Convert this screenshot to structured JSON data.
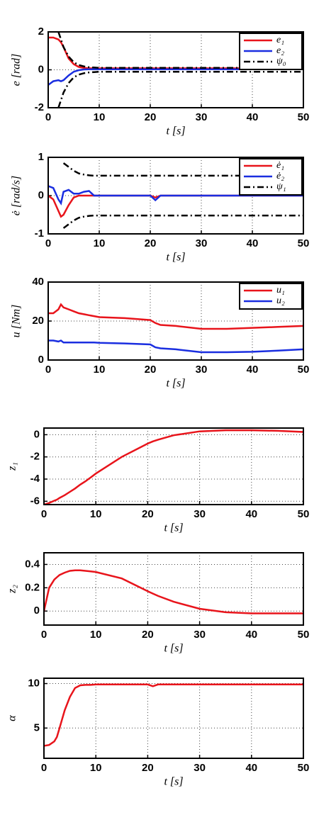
{
  "chart_data": [
    {
      "type": "line",
      "ylabel": "e [rad]",
      "xlabel": "t [s]",
      "x": [
        0,
        1,
        2,
        2.5,
        3,
        4,
        5,
        6,
        7,
        8,
        9,
        10,
        15,
        20,
        21,
        22,
        25,
        30,
        35,
        40,
        45,
        50
      ],
      "series": [
        {
          "name": "e₁",
          "color": "#e8141b",
          "linestyle": "solid",
          "values": [
            1.7,
            1.7,
            1.6,
            1.45,
            1.2,
            0.6,
            0.3,
            0.15,
            0.1,
            0.08,
            0.08,
            0.08,
            0.08,
            0.08,
            0.08,
            0.08,
            0.08,
            0.08,
            0.08,
            0.08,
            0.08,
            0.08
          ]
        },
        {
          "name": "e₂",
          "color": "#1a2ee0",
          "linestyle": "solid",
          "values": [
            -0.8,
            -0.6,
            -0.55,
            -0.6,
            -0.55,
            -0.3,
            -0.1,
            -0.02,
            0.02,
            0.03,
            0.03,
            0.03,
            0.03,
            0.03,
            0.03,
            0.03,
            0.03,
            0.03,
            0.03,
            0.03,
            0.03,
            0.03
          ]
        },
        {
          "name": "ψ₀",
          "color": "#000000",
          "linestyle": "dashdot",
          "values": [
            null,
            null,
            2,
            1.6,
            1.2,
            0.7,
            0.4,
            0.25,
            0.18,
            0.14,
            0.12,
            0.1,
            0.1,
            0.1,
            0.1,
            0.1,
            0.1,
            0.1,
            0.1,
            0.1,
            0.1,
            0.1
          ],
          "lower": [
            null,
            null,
            -2,
            -1.6,
            -1.2,
            -0.7,
            -0.4,
            -0.25,
            -0.18,
            -0.14,
            -0.12,
            -0.1,
            -0.1,
            -0.1,
            -0.1,
            -0.1,
            -0.1,
            -0.1,
            -0.1,
            -0.1,
            -0.1,
            -0.1
          ]
        }
      ],
      "xlim": [
        0,
        50
      ],
      "xticks": [
        0,
        10,
        20,
        30,
        40,
        50
      ],
      "ylim": [
        -2,
        2
      ],
      "yticks": [
        -2,
        0,
        2
      ],
      "grid": true,
      "legend": "upper right"
    },
    {
      "type": "line",
      "ylabel": "ė [rad/s]",
      "xlabel": "t [s]",
      "x": [
        0,
        1,
        2,
        2.5,
        3,
        4,
        5,
        6,
        7,
        8,
        9,
        10,
        15,
        20,
        21,
        22,
        25,
        30,
        35,
        40,
        45,
        50
      ],
      "series": [
        {
          "name": "ė₁",
          "color": "#e8141b",
          "linestyle": "solid",
          "values": [
            0,
            -0.1,
            -0.4,
            -0.55,
            -0.5,
            -0.25,
            -0.05,
            0,
            0,
            0,
            0,
            0,
            0,
            0,
            -0.05,
            0,
            0,
            0,
            0,
            0,
            0,
            0
          ]
        },
        {
          "name": "ė₂",
          "color": "#1a2ee0",
          "linestyle": "solid",
          "values": [
            0.25,
            0.2,
            -0.1,
            -0.2,
            0.1,
            0.15,
            0.05,
            0.05,
            0.1,
            0.12,
            0,
            0,
            0,
            0,
            -0.12,
            0,
            0,
            0,
            0,
            0,
            0,
            0
          ]
        },
        {
          "name": "ψ₁",
          "color": "#000000",
          "linestyle": "dashdot",
          "values": [
            null,
            null,
            null,
            null,
            0.85,
            0.75,
            0.65,
            0.58,
            0.55,
            0.53,
            0.52,
            0.52,
            0.52,
            0.52,
            0.52,
            0.52,
            0.52,
            0.52,
            0.52,
            0.52,
            0.52,
            0.52
          ],
          "lower": [
            null,
            null,
            null,
            null,
            -0.85,
            -0.75,
            -0.65,
            -0.58,
            -0.55,
            -0.53,
            -0.52,
            -0.52,
            -0.52,
            -0.52,
            -0.52,
            -0.52,
            -0.52,
            -0.52,
            -0.52,
            -0.52,
            -0.52,
            -0.52
          ]
        }
      ],
      "xlim": [
        0,
        50
      ],
      "xticks": [
        0,
        10,
        20,
        30,
        40,
        50
      ],
      "ylim": [
        -1,
        1
      ],
      "yticks": [
        -1,
        0,
        1
      ],
      "grid": true,
      "legend": "upper right"
    },
    {
      "type": "line",
      "ylabel": "u [Nm]",
      "xlabel": "t [s]",
      "x": [
        0,
        1,
        2,
        2.5,
        3,
        4,
        5,
        6,
        7,
        8,
        9,
        10,
        15,
        20,
        21,
        22,
        25,
        30,
        35,
        40,
        45,
        50
      ],
      "series": [
        {
          "name": "u₁",
          "color": "#e8141b",
          "linestyle": "solid",
          "values": [
            24,
            24,
            26,
            28.5,
            27,
            26,
            25,
            24,
            23.5,
            23,
            22.5,
            22,
            21.5,
            20.5,
            19,
            18,
            17.5,
            16,
            16,
            16.5,
            17,
            17.5
          ]
        },
        {
          "name": "u₂",
          "color": "#1a2ee0",
          "linestyle": "solid",
          "values": [
            10,
            10,
            9.5,
            10,
            9,
            9,
            9,
            9,
            9,
            9,
            9,
            8.8,
            8.5,
            8,
            6.5,
            6,
            5.5,
            4,
            4,
            4.2,
            4.8,
            5.5
          ]
        }
      ],
      "xlim": [
        0,
        50
      ],
      "xticks": [
        0,
        10,
        20,
        30,
        40,
        50
      ],
      "ylim": [
        0,
        40
      ],
      "yticks": [
        0,
        20,
        40
      ],
      "grid": true,
      "legend": "upper right"
    },
    {
      "type": "line",
      "ylabel": "z₁",
      "xlabel": "t [s]",
      "x": [
        0,
        1,
        2,
        2.5,
        3,
        4,
        5,
        6,
        7,
        8,
        9,
        10,
        15,
        20,
        21,
        22,
        25,
        30,
        35,
        40,
        45,
        50
      ],
      "series": [
        {
          "color": "#e8141b",
          "linestyle": "solid",
          "values": [
            -6.3,
            -6.15,
            -5.95,
            -5.85,
            -5.7,
            -5.45,
            -5.15,
            -4.85,
            -4.5,
            -4.2,
            -3.85,
            -3.5,
            -2,
            -0.8,
            -0.6,
            -0.45,
            -0.05,
            0.3,
            0.4,
            0.4,
            0.35,
            0.25
          ]
        }
      ],
      "xlim": [
        0,
        50
      ],
      "xticks": [
        0,
        10,
        20,
        30,
        40,
        50
      ],
      "ylim": [
        -6.3,
        0.6
      ],
      "yticks": [
        -6,
        -4,
        -2,
        0
      ],
      "grid": true
    },
    {
      "type": "line",
      "ylabel": "z₂",
      "xlabel": "t [s]",
      "x": [
        0,
        1,
        2,
        2.5,
        3,
        4,
        5,
        6,
        7,
        8,
        9,
        10,
        15,
        20,
        21,
        22,
        25,
        30,
        35,
        40,
        45,
        50
      ],
      "series": [
        {
          "color": "#e8141b",
          "linestyle": "solid",
          "values": [
            0,
            0.2,
            0.27,
            0.29,
            0.31,
            0.33,
            0.345,
            0.35,
            0.35,
            0.345,
            0.34,
            0.335,
            0.28,
            0.17,
            0.15,
            0.13,
            0.08,
            0.02,
            -0.01,
            -0.02,
            -0.02,
            -0.02
          ]
        }
      ],
      "xlim": [
        0,
        50
      ],
      "xticks": [
        0,
        10,
        20,
        30,
        40,
        50
      ],
      "ylim": [
        -0.12,
        0.5
      ],
      "yticks": [
        0,
        0.2,
        0.4
      ],
      "grid": true
    },
    {
      "type": "line",
      "ylabel": "α",
      "xlabel": "t [s]",
      "x": [
        0,
        1,
        2,
        2.5,
        3,
        4,
        5,
        6,
        7,
        8,
        9,
        10,
        15,
        20,
        21,
        22,
        25,
        30,
        35,
        40,
        45,
        50
      ],
      "series": [
        {
          "color": "#e8141b",
          "linestyle": "solid",
          "values": [
            3,
            3.1,
            3.5,
            4,
            5,
            7,
            8.5,
            9.5,
            9.8,
            9.85,
            9.85,
            9.9,
            9.9,
            9.9,
            9.7,
            9.9,
            9.9,
            9.9,
            9.9,
            9.9,
            9.9,
            9.9
          ]
        }
      ],
      "xlim": [
        0,
        50
      ],
      "xticks": [
        0,
        10,
        20,
        30,
        40,
        50
      ],
      "ylim": [
        1.6,
        10.6
      ],
      "yticks": [
        5,
        10
      ],
      "grid": true
    }
  ]
}
